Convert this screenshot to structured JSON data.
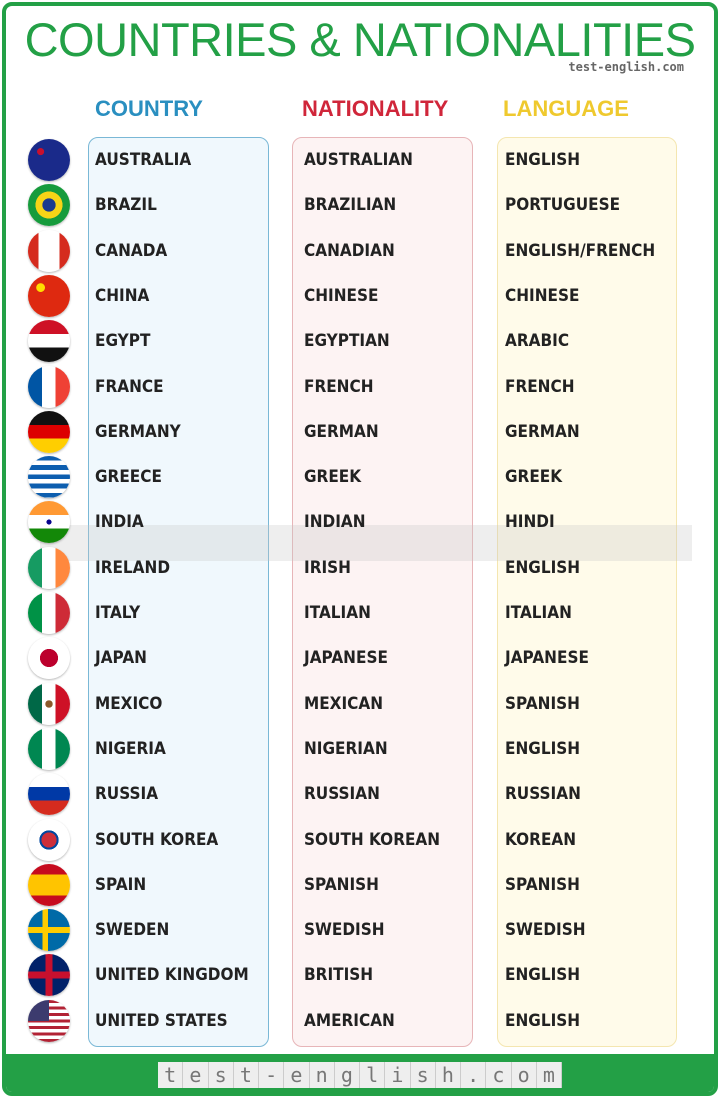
{
  "title": "COUNTRIES & NATIONALITIES",
  "brand": "test-english.com",
  "headers": {
    "country": "COUNTRY",
    "nationality": "NATIONALITY",
    "language": "LANGUAGE"
  },
  "colors": {
    "green": "#23a046",
    "country": "#2a8fc0",
    "nationality": "#d0263a",
    "language": "#efc92e"
  },
  "rows": [
    {
      "flag": "australia-flag",
      "country": "AUSTRALIA",
      "nationality": "AUSTRALIAN",
      "language": "ENGLISH"
    },
    {
      "flag": "brazil-flag",
      "country": "BRAZIL",
      "nationality": "BRAZILIAN",
      "language": "PORTUGUESE"
    },
    {
      "flag": "canada-flag",
      "country": "CANADA",
      "nationality": "CANADIAN",
      "language": "ENGLISH/FRENCH"
    },
    {
      "flag": "china-flag",
      "country": "CHINA",
      "nationality": "CHINESE",
      "language": "CHINESE"
    },
    {
      "flag": "egypt-flag",
      "country": "EGYPT",
      "nationality": "EGYPTIAN",
      "language": "ARABIC"
    },
    {
      "flag": "france-flag",
      "country": "FRANCE",
      "nationality": "FRENCH",
      "language": "FRENCH"
    },
    {
      "flag": "germany-flag",
      "country": "GERMANY",
      "nationality": "GERMAN",
      "language": "GERMAN"
    },
    {
      "flag": "greece-flag",
      "country": "GREECE",
      "nationality": "GREEK",
      "language": "GREEK"
    },
    {
      "flag": "india-flag",
      "country": "INDIA",
      "nationality": "INDIAN",
      "language": "HINDI"
    },
    {
      "flag": "ireland-flag",
      "country": "IRELAND",
      "nationality": "IRISH",
      "language": "ENGLISH"
    },
    {
      "flag": "italy-flag",
      "country": "ITALY",
      "nationality": "ITALIAN",
      "language": "ITALIAN"
    },
    {
      "flag": "japan-flag",
      "country": "JAPAN",
      "nationality": "JAPANESE",
      "language": "JAPANESE"
    },
    {
      "flag": "mexico-flag",
      "country": "MEXICO",
      "nationality": "MEXICAN",
      "language": "SPANISH"
    },
    {
      "flag": "nigeria-flag",
      "country": "NIGERIA",
      "nationality": "NIGERIAN",
      "language": "ENGLISH"
    },
    {
      "flag": "russia-flag",
      "country": "RUSSIA",
      "nationality": "RUSSIAN",
      "language": "RUSSIAN"
    },
    {
      "flag": "south-korea-flag",
      "country": "SOUTH KOREA",
      "nationality": "SOUTH KOREAN",
      "language": "KOREAN"
    },
    {
      "flag": "spain-flag",
      "country": "SPAIN",
      "nationality": "SPANISH",
      "language": "SPANISH"
    },
    {
      "flag": "sweden-flag",
      "country": "SWEDEN",
      "nationality": "SWEDISH",
      "language": "SWEDISH"
    },
    {
      "flag": "uk-flag",
      "country": "UNITED KINGDOM",
      "nationality": "BRITISH",
      "language": "ENGLISH"
    },
    {
      "flag": "usa-flag",
      "country": "UNITED STATES",
      "nationality": "AMERICAN",
      "language": "ENGLISH"
    }
  ]
}
